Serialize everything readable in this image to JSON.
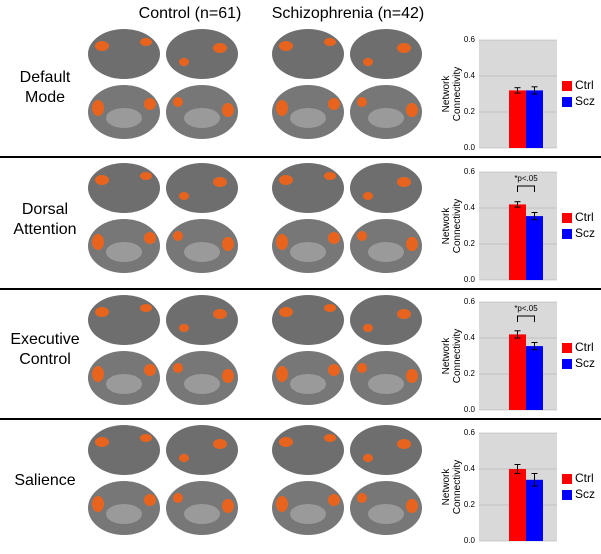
{
  "columns": [
    "Control (n=61)",
    "Schizophrenia (n=42)"
  ],
  "rows": [
    {
      "label": [
        "Default",
        "Mode"
      ]
    },
    {
      "label": [
        "Dorsal",
        "Attention"
      ]
    },
    {
      "label": [
        "Executive",
        "Control"
      ]
    },
    {
      "label": [
        "Salience"
      ]
    }
  ],
  "chart_data": [
    {
      "type": "bar",
      "ylabel": [
        "Network",
        "Connectivity"
      ],
      "categories": [
        null
      ],
      "series": [
        {
          "name": "Ctrl",
          "color": "#ff0000",
          "values": [
            0.32
          ],
          "errors": [
            0.015
          ]
        },
        {
          "name": "Scz",
          "color": "#0000ff",
          "values": [
            0.32
          ],
          "errors": [
            0.02
          ]
        }
      ],
      "ylim": [
        0,
        0.6
      ],
      "yticks": [
        {
          "value": 0,
          "label": "0.0"
        },
        0.2,
        0.4,
        0.6
      ],
      "grid": true,
      "legend": "right"
    },
    {
      "type": "bar",
      "ylabel": [
        "Network",
        "Connectivity"
      ],
      "categories": [
        null
      ],
      "annotation": "*p<.05",
      "series": [
        {
          "name": "Ctrl",
          "color": "#ff0000",
          "values": [
            0.42
          ],
          "errors": [
            0.015
          ]
        },
        {
          "name": "Scz",
          "color": "#0000ff",
          "values": [
            0.355
          ],
          "errors": [
            0.02
          ]
        }
      ],
      "ylim": [
        0,
        0.6
      ],
      "yticks": [
        {
          "value": 0,
          "label": "0.0"
        },
        0.2,
        0.4,
        0.6
      ],
      "grid": true,
      "legend": "right"
    },
    {
      "type": "bar",
      "ylabel": [
        "Network",
        "Connectivity"
      ],
      "categories": [
        null
      ],
      "annotation": "*p<.05",
      "series": [
        {
          "name": "Ctrl",
          "color": "#ff0000",
          "values": [
            0.42
          ],
          "errors": [
            0.02
          ]
        },
        {
          "name": "Scz",
          "color": "#0000ff",
          "values": [
            0.355
          ],
          "errors": [
            0.02
          ]
        }
      ],
      "ylim": [
        0,
        0.6
      ],
      "yticks": [
        {
          "value": 0,
          "label": "0.0"
        },
        0.2,
        0.4,
        0.6
      ],
      "grid": true,
      "legend": "right"
    },
    {
      "type": "bar",
      "ylabel": [
        "Network",
        "Connectivity"
      ],
      "categories": [
        null
      ],
      "series": [
        {
          "name": "Ctrl",
          "color": "#ff0000",
          "values": [
            0.4
          ],
          "errors": [
            0.025
          ]
        },
        {
          "name": "Scz",
          "color": "#0000ff",
          "values": [
            0.34
          ],
          "errors": [
            0.035
          ]
        }
      ],
      "ylim": [
        0,
        0.6
      ],
      "yticks": [
        {
          "value": 0,
          "label": "0.0"
        },
        0.2,
        0.4,
        0.6
      ],
      "grid": true,
      "legend": "right"
    }
  ]
}
